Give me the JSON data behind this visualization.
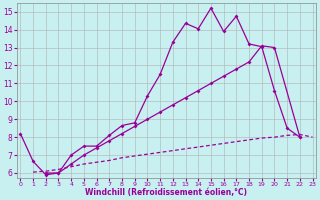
{
  "xlabel": "Windchill (Refroidissement éolien,°C)",
  "bg_color": "#c8f0f0",
  "line_color": "#990099",
  "grid_color": "#b0b0b0",
  "x_ticks": [
    0,
    1,
    2,
    3,
    4,
    5,
    6,
    7,
    8,
    9,
    10,
    11,
    12,
    13,
    14,
    15,
    16,
    17,
    18,
    19,
    20,
    21,
    22,
    23
  ],
  "y_ticks": [
    6,
    7,
    8,
    9,
    10,
    11,
    12,
    13,
    14,
    15
  ],
  "ylim": [
    5.7,
    15.5
  ],
  "xlim": [
    -0.3,
    23.3
  ],
  "line1_x": [
    0,
    1,
    2,
    3,
    4,
    5,
    6,
    7,
    8,
    9,
    10,
    11,
    12,
    13,
    14,
    15,
    16,
    17,
    18,
    19,
    20,
    21,
    22
  ],
  "line1_y": [
    8.2,
    6.65,
    5.9,
    6.0,
    7.0,
    7.5,
    7.5,
    8.1,
    8.65,
    8.8,
    10.3,
    11.5,
    13.3,
    14.35,
    14.05,
    15.2,
    13.9,
    14.75,
    13.2,
    13.05,
    10.6,
    8.5,
    8.0
  ],
  "line2_x": [
    2,
    3,
    4,
    5,
    6,
    7,
    8,
    9,
    10,
    11,
    12,
    13,
    14,
    15,
    16,
    17,
    18,
    19,
    20,
    22
  ],
  "line2_y": [
    6.0,
    6.0,
    6.5,
    7.0,
    7.4,
    7.8,
    8.2,
    8.6,
    9.0,
    9.4,
    9.8,
    10.2,
    10.6,
    11.0,
    11.4,
    11.8,
    12.2,
    13.1,
    13.0,
    8.0
  ],
  "line3_x": [
    1,
    2,
    3,
    4,
    5,
    6,
    7,
    8,
    9,
    10,
    11,
    12,
    13,
    14,
    15,
    16,
    17,
    18,
    19,
    20,
    21,
    22,
    23
  ],
  "line3_y": [
    6.05,
    6.1,
    6.2,
    6.35,
    6.5,
    6.6,
    6.7,
    6.85,
    6.95,
    7.05,
    7.15,
    7.25,
    7.35,
    7.45,
    7.55,
    7.65,
    7.75,
    7.85,
    7.95,
    8.0,
    8.1,
    8.15,
    8.0
  ]
}
